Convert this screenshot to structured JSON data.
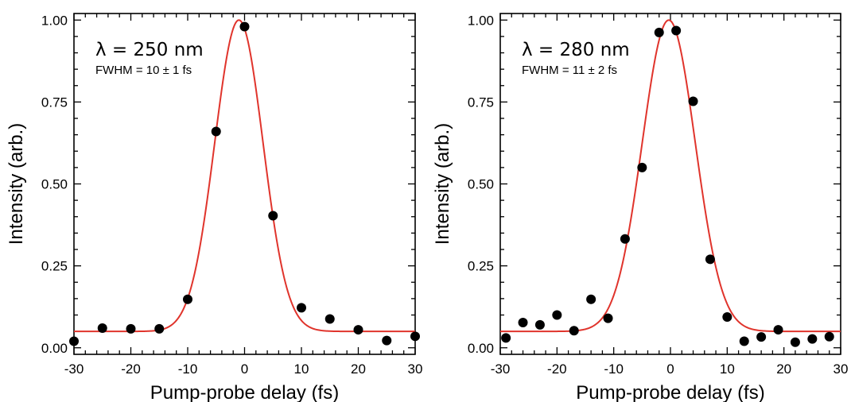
{
  "chart_data": [
    {
      "type": "scatter",
      "title": "λ = 250 nm",
      "subtitle": "FWHM = 10 ± 1 fs",
      "xlabel": "Pump-probe delay (fs)",
      "ylabel": "Intensity (arb.)",
      "xlim": [
        -30,
        30
      ],
      "ylim": [
        -0.02,
        1.02
      ],
      "xticks": [
        "-30",
        "-20",
        "-10",
        "0",
        "10",
        "20",
        "30"
      ],
      "yticks": [
        "0.00",
        "0.25",
        "0.50",
        "0.75",
        "1.00"
      ],
      "grid": false,
      "points": {
        "x": [
          -30,
          -25,
          -20,
          -15,
          -10,
          -5,
          0,
          5,
          10,
          15,
          20,
          25,
          30
        ],
        "y": [
          0.02,
          0.06,
          0.058,
          0.058,
          0.148,
          0.66,
          0.98,
          0.403,
          0.122,
          0.088,
          0.055,
          0.022,
          0.035
        ]
      },
      "fit": {
        "shape": "gaussian",
        "center": -1.0,
        "fwhm": 10,
        "amplitude": 0.95,
        "offset": 0.05
      },
      "colors": {
        "points": "#000000",
        "fit": "#e0342c"
      }
    },
    {
      "type": "scatter",
      "title": "λ = 280 nm",
      "subtitle": "FWHM = 11 ± 2 fs",
      "xlabel": "Pump-probe delay (fs)",
      "ylabel": "Intensity (arb.)",
      "xlim": [
        -30,
        30
      ],
      "ylim": [
        -0.02,
        1.02
      ],
      "xticks": [
        "-30",
        "-20",
        "-10",
        "0",
        "10",
        "20",
        "30"
      ],
      "yticks": [
        "0.00",
        "0.25",
        "0.50",
        "0.75",
        "1.00"
      ],
      "grid": false,
      "points": {
        "x": [
          -29,
          -26,
          -23,
          -20,
          -17,
          -14,
          -11,
          -8,
          -5,
          -2,
          1,
          4,
          7,
          10,
          13,
          16,
          19,
          22,
          25,
          28
        ],
        "y": [
          0.03,
          0.077,
          0.07,
          0.1,
          0.052,
          0.148,
          0.09,
          0.332,
          0.55,
          0.962,
          0.968,
          0.752,
          0.27,
          0.094,
          0.02,
          0.033,
          0.055,
          0.017,
          0.027,
          0.034
        ]
      },
      "fit": {
        "shape": "gaussian",
        "center": -0.3,
        "fwhm": 11,
        "amplitude": 0.95,
        "offset": 0.05
      },
      "colors": {
        "points": "#000000",
        "fit": "#e0342c"
      }
    }
  ]
}
